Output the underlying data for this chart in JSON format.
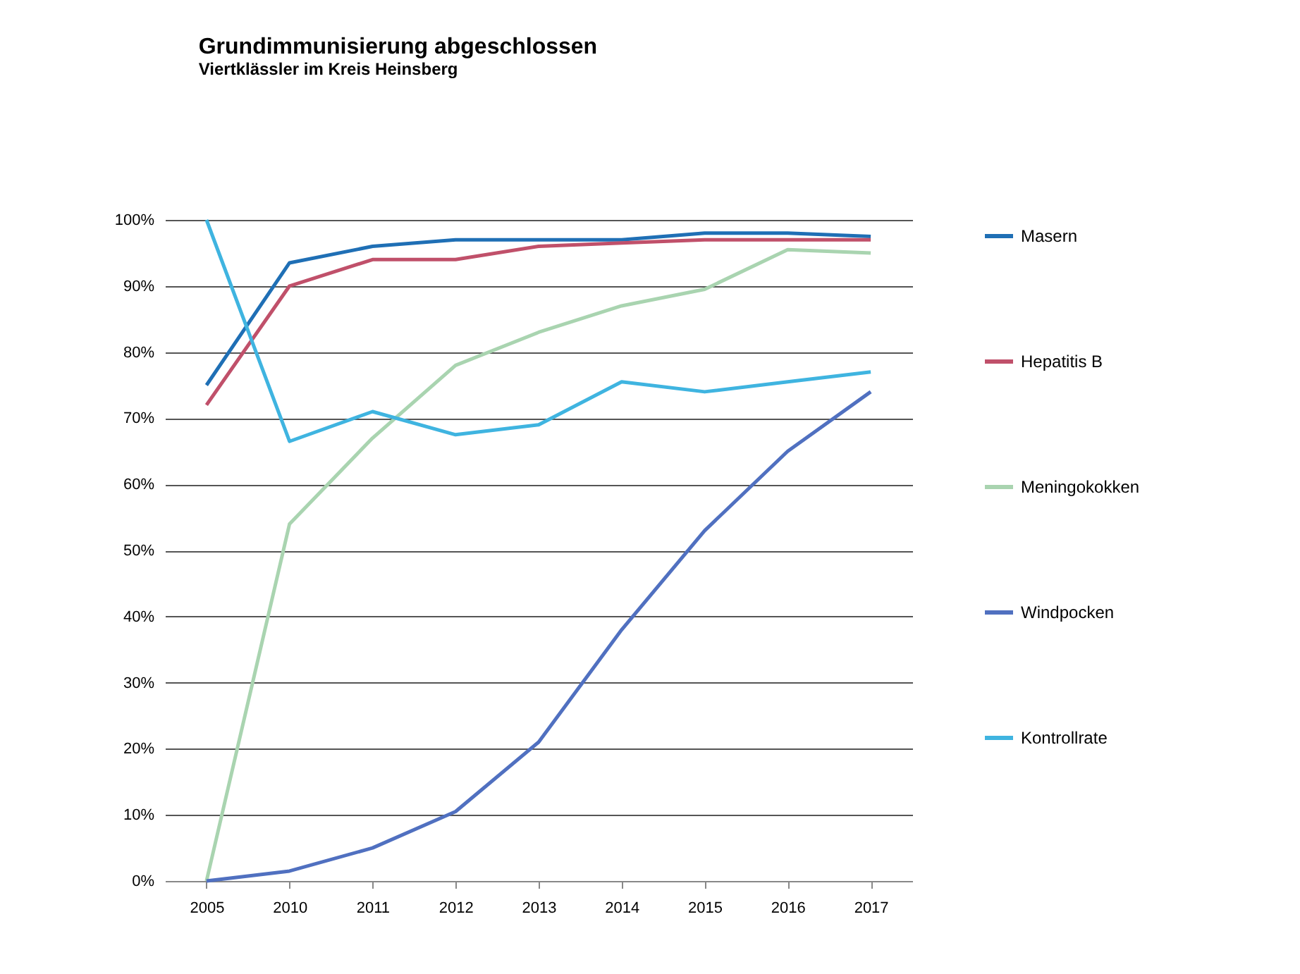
{
  "chart_data": {
    "type": "line",
    "title": "Grundimmunisierung abgeschlossen",
    "subtitle": "Viertklässler im Kreis Heinsberg",
    "categories": [
      "2005",
      "2010",
      "2011",
      "2012",
      "2013",
      "2014",
      "2015",
      "2016",
      "2017"
    ],
    "series": [
      {
        "name": "Masern",
        "color": "#1f6fb5",
        "values": [
          75,
          93.5,
          96,
          97,
          97,
          97,
          98,
          98,
          97.5
        ]
      },
      {
        "name": "Hepatitis B",
        "color": "#c0506a",
        "values": [
          72,
          90,
          94,
          94,
          96,
          96.5,
          97,
          97,
          97
        ]
      },
      {
        "name": "Meningokokken",
        "color": "#a9d4b0",
        "values": [
          0,
          54,
          67,
          78,
          83,
          87,
          89.5,
          95.5,
          95
        ]
      },
      {
        "name": "Windpocken",
        "color": "#5070c0",
        "values": [
          0,
          1.5,
          5,
          10.5,
          21,
          38,
          53,
          65,
          74
        ]
      },
      {
        "name": "Kontrollrate",
        "color": "#3fb4e0",
        "values": [
          100,
          66.5,
          71,
          67.5,
          69,
          75.5,
          74,
          75.5,
          77
        ]
      }
    ],
    "ylim": [
      0,
      100
    ],
    "yticks": [
      {
        "value": 0,
        "label": "0%"
      },
      {
        "value": 10,
        "label": "10%"
      },
      {
        "value": 20,
        "label": "20%"
      },
      {
        "value": 30,
        "label": "30%"
      },
      {
        "value": 40,
        "label": "40%"
      },
      {
        "value": 50,
        "label": "50%"
      },
      {
        "value": 60,
        "label": "60%"
      },
      {
        "value": 70,
        "label": "70%"
      },
      {
        "value": 80,
        "label": "80%"
      },
      {
        "value": 90,
        "label": "90%"
      },
      {
        "value": 100,
        "label": "100%"
      }
    ],
    "grid": "y",
    "legend": "right",
    "marker": "none",
    "line_style": "solid"
  }
}
